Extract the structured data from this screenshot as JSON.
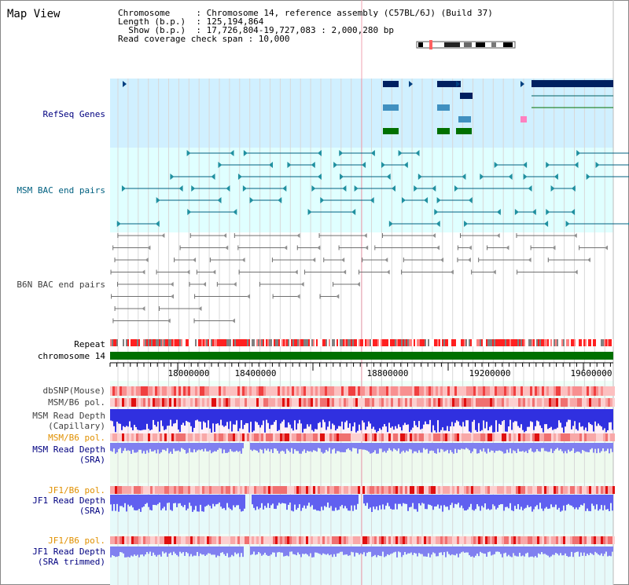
{
  "title": "Map View",
  "header": {
    "line1": "Chromosome     : Chromosome 14, reference assembly (C57BL/6J) (Build 37)",
    "line2": "Length (b.p.)  : 125,194,864",
    "line3": "  Show (b.p.)  : 17,726,804-19,727,083 : 2,000,280 bp",
    "line4": "Read coverage check span : 10,000"
  },
  "tracks": {
    "refseq": "RefSeq Genes",
    "msm_bac": "MSM BAC end pairs",
    "b6n_bac": "B6N BAC end pairs",
    "repeat": "Repeat",
    "chromosome": "chromosome 14",
    "dbsnp": "dbSNP(Mouse)",
    "msm_b6_pol_1": "MSM/B6 pol.",
    "msm_read_depth_cap_1": "MSM Read Depth",
    "msm_read_depth_cap_2": "(Capillary)",
    "msm_b6_pol_2": "MSM/B6 pol.",
    "msm_read_depth_sra_1": "MSM Read Depth",
    "msm_read_depth_sra_2": "(SRA)",
    "jf1_b6_pol_1": "JF1/B6 pol.",
    "jf1_read_depth_1": "JF1 Read Depth",
    "jf1_read_depth_2": "(SRA)",
    "jf1_b6_pol_2": "JF1/B6 pol.",
    "jf1_read_depth_trim_1": "JF1 Read Depth",
    "jf1_read_depth_trim_2": "(SRA trimmed)"
  },
  "ruler": {
    "ticks": [
      "18000000",
      "18400000",
      "18800000",
      "19200000",
      "19600000"
    ]
  },
  "colors": {
    "navy": "#000080",
    "teal": "#006080",
    "orange": "#e09000",
    "refseq_bg": "#d0f0ff",
    "bac_bg": "#e0ffff",
    "chrom": "#007000"
  }
}
